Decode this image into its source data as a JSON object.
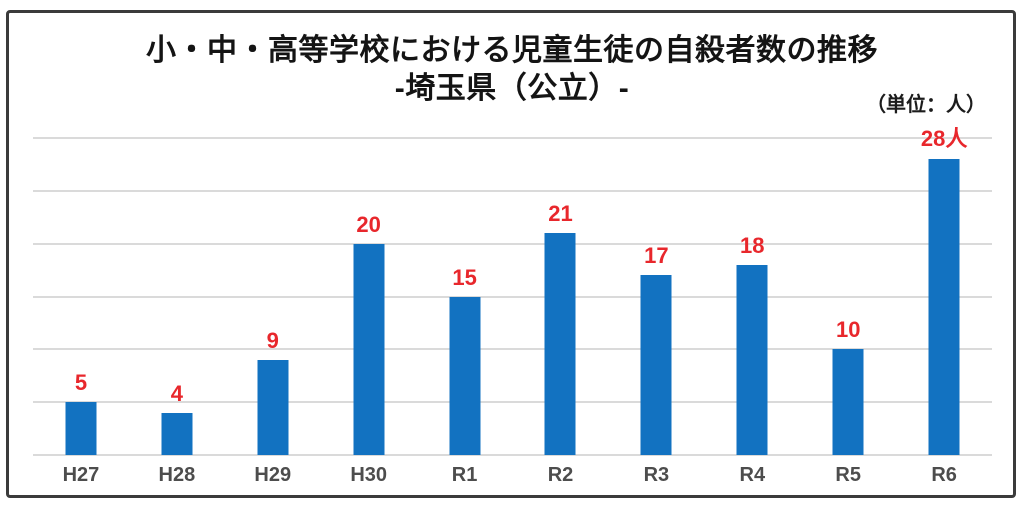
{
  "chart": {
    "title": "小・中・高等学校における児童生徒の自殺者数の推移",
    "subtitle": "-埼玉県（公立）-",
    "unit_label": "（単位：人）"
  },
  "chart_data": {
    "type": "bar",
    "title": "小・中・高等学校における児童生徒の自殺者数の推移 -埼玉県（公立）-",
    "unit": "人",
    "categories": [
      "H27",
      "H28",
      "H29",
      "H30",
      "R1",
      "R2",
      "R3",
      "R4",
      "R5",
      "R6"
    ],
    "values": [
      5,
      4,
      9,
      20,
      15,
      21,
      17,
      18,
      10,
      28
    ],
    "value_labels": [
      "5",
      "4",
      "9",
      "20",
      "15",
      "21",
      "17",
      "18",
      "10",
      "28人"
    ],
    "xlabel": "",
    "ylabel": "",
    "ylim": [
      0,
      30
    ],
    "grid_interval": 5,
    "grid": true,
    "legend": "none"
  },
  "colors": {
    "bar": "#1272C1",
    "value_label": "#E8272C",
    "gridline": "#DADADA",
    "category_label": "#4D4D4D",
    "frame_border": "#3B3B3B",
    "title_text": "#141414",
    "background": "#FFFFFF"
  }
}
